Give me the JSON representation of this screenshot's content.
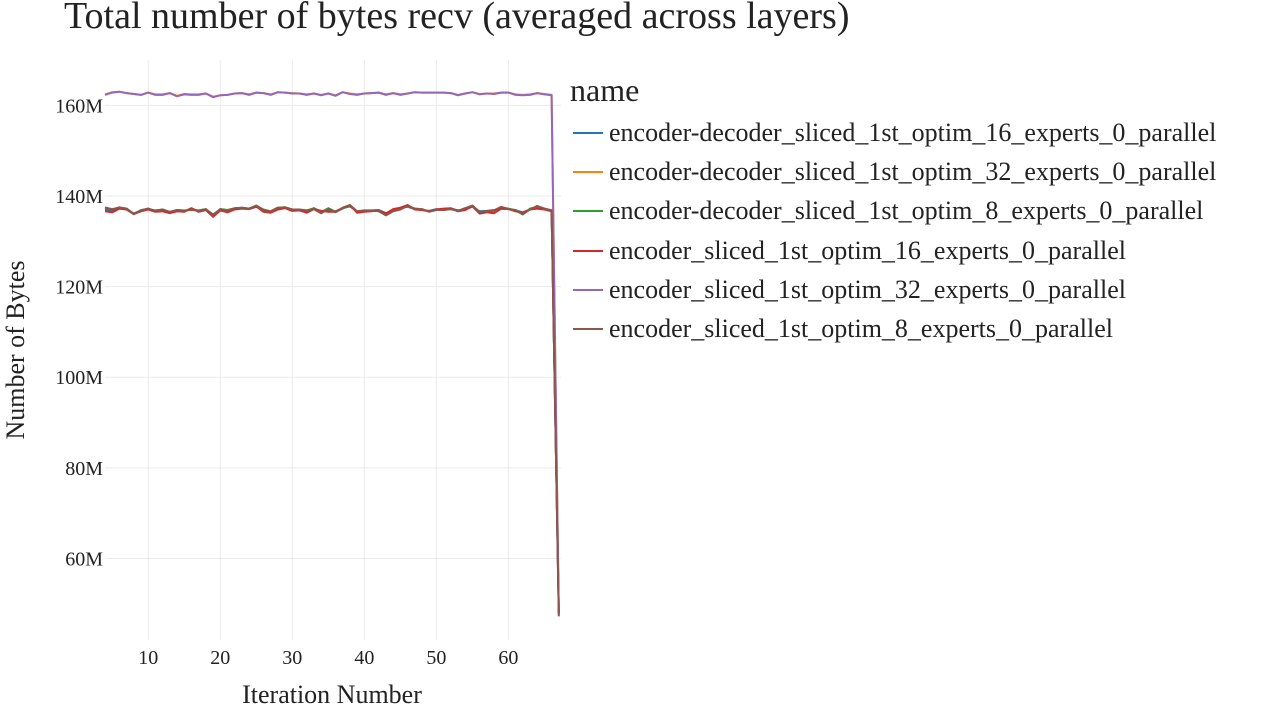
{
  "chart_data": {
    "type": "line",
    "title": "Total number of bytes recv (averaged across layers)",
    "xlabel": "Iteration Number",
    "ylabel": "Number of Bytes",
    "xlim": [
      4,
      67.3
    ],
    "ylim": [
      42000000,
      170000000
    ],
    "xticks": [
      10,
      20,
      30,
      40,
      50,
      60
    ],
    "xtick_labels": [
      "10",
      "20",
      "30",
      "40",
      "50",
      "60"
    ],
    "yticks": [
      60000000,
      80000000,
      100000000,
      120000000,
      140000000,
      160000000
    ],
    "ytick_labels": [
      "60M",
      "80M",
      "100M",
      "120M",
      "140M",
      "160M"
    ],
    "grid": true,
    "legend_title": "name",
    "legend_position": "right",
    "x": [
      4,
      5,
      6,
      7,
      8,
      9,
      10,
      11,
      12,
      13,
      14,
      15,
      16,
      17,
      18,
      19,
      20,
      21,
      22,
      23,
      24,
      25,
      26,
      27,
      28,
      29,
      30,
      31,
      32,
      33,
      34,
      35,
      36,
      37,
      38,
      39,
      40,
      41,
      42,
      43,
      44,
      45,
      46,
      47,
      48,
      49,
      50,
      51,
      52,
      53,
      54,
      55,
      56,
      57,
      58,
      59,
      60,
      61,
      62,
      63,
      64,
      65,
      66,
      67
    ],
    "series": [
      {
        "name": "encoder-decoder_sliced_1st_optim_16_experts_0_parallel",
        "color": "#1f77b4",
        "values": [
          137,
          136.8,
          137.3,
          137.1,
          136.1,
          136.8,
          137.2,
          136.6,
          136.9,
          136.5,
          136.8,
          136.6,
          137.2,
          136.7,
          137,
          135.9,
          137,
          136.8,
          137.2,
          137.3,
          137.1,
          137.6,
          136.8,
          136.5,
          137.2,
          137.4,
          136.9,
          136.9,
          136.6,
          137.3,
          136.5,
          136.9,
          136.6,
          137.3,
          137.7,
          136.6,
          136.8,
          136.8,
          136.9,
          136.2,
          136.8,
          137.3,
          137.6,
          137.1,
          136.9,
          136.7,
          137.1,
          137,
          137.2,
          136.8,
          137.1,
          137.7,
          136.6,
          136.7,
          136.9,
          137.2,
          137.1,
          136.8,
          136.4,
          137,
          137.4,
          137.2,
          136.8,
          48
        ]
      },
      {
        "name": "encoder-decoder_sliced_1st_optim_32_experts_0_parallel",
        "color": "#ff7f0e",
        "values": [
          162.4,
          162.9,
          163,
          162.7,
          162.5,
          162.3,
          162.8,
          162.4,
          162.4,
          162.7,
          162.1,
          162.5,
          162.4,
          162.4,
          162.6,
          161.9,
          162.2,
          162.3,
          162.6,
          162.7,
          162.4,
          162.8,
          162.7,
          162.4,
          162.9,
          162.8,
          162.7,
          162.6,
          162.4,
          162.6,
          162.3,
          162.6,
          162.2,
          162.9,
          162.6,
          162.4,
          162.6,
          162.7,
          162.8,
          162.4,
          162.7,
          162.4,
          162.6,
          162.9,
          162.8,
          162.8,
          162.8,
          162.8,
          162.7,
          162.3,
          162.6,
          162.9,
          162.5,
          162.6,
          162.6,
          162.8,
          162.8,
          162.4,
          162.3,
          162.4,
          162.7,
          162.5,
          162.3,
          48
        ]
      },
      {
        "name": "encoder-decoder_sliced_1st_optim_8_experts_0_parallel",
        "color": "#2ca02c",
        "values": [
          137.4,
          137.1,
          137.4,
          137.2,
          136,
          136.9,
          137.1,
          136.8,
          137,
          136.4,
          136.9,
          136.8,
          136.9,
          136.8,
          137.1,
          135.8,
          137.1,
          136.9,
          137.3,
          137.4,
          137.2,
          137.8,
          137,
          136.6,
          137.4,
          137.5,
          137,
          136.8,
          136.8,
          137.3,
          136.4,
          137.3,
          136.5,
          137.2,
          137.9,
          136.5,
          136.7,
          136.8,
          136.6,
          135.8,
          136.7,
          137.1,
          137.8,
          137.2,
          137,
          136.6,
          137,
          136.9,
          137.1,
          136.7,
          137.3,
          137.8,
          136.4,
          136.6,
          136.7,
          137.5,
          137.2,
          136.8,
          135.9,
          137.2,
          137.6,
          137.1,
          136.7,
          48
        ]
      },
      {
        "name": "encoder_sliced_1st_optim_16_experts_0_parallel",
        "color": "#d62728",
        "values": [
          136.6,
          136.4,
          137.2,
          137,
          136,
          136.6,
          137,
          136.5,
          136.6,
          136.2,
          136.6,
          136.5,
          137.3,
          136.5,
          136.9,
          135.4,
          136.8,
          136.4,
          137,
          137.2,
          137.1,
          137.7,
          136.5,
          136.3,
          137,
          137.3,
          136.7,
          136.8,
          136.3,
          137.1,
          136.7,
          136.5,
          136.5,
          137.4,
          138,
          136.3,
          136.5,
          136.6,
          136.8,
          136.1,
          137.1,
          137.4,
          138,
          137,
          136.9,
          136.6,
          137,
          137.2,
          137.3,
          136.6,
          136.9,
          137.7,
          136.1,
          136.4,
          136.2,
          137.2,
          137.1,
          136.6,
          136.3,
          137,
          137.2,
          137,
          136.6,
          48
        ]
      },
      {
        "name": "encoder_sliced_1st_optim_32_experts_0_parallel",
        "color": "#9467bd",
        "values": [
          162.3,
          162.8,
          163,
          162.7,
          162.5,
          162.3,
          162.8,
          162.3,
          162.3,
          162.7,
          162,
          162.4,
          162.3,
          162.3,
          162.6,
          161.8,
          162.2,
          162.3,
          162.6,
          162.7,
          162.3,
          162.8,
          162.7,
          162.3,
          162.9,
          162.8,
          162.6,
          162.6,
          162.3,
          162.6,
          162.2,
          162.6,
          162.1,
          162.9,
          162.5,
          162.3,
          162.6,
          162.7,
          162.8,
          162.3,
          162.7,
          162.3,
          162.6,
          162.9,
          162.8,
          162.8,
          162.8,
          162.8,
          162.7,
          162.2,
          162.6,
          162.9,
          162.4,
          162.6,
          162.5,
          162.8,
          162.8,
          162.3,
          162.2,
          162.3,
          162.7,
          162.4,
          162.2,
          47.5
        ]
      },
      {
        "name": "encoder_sliced_1st_optim_8_experts_0_parallel",
        "color": "#8c564b",
        "values": [
          137.5,
          137,
          137.5,
          137.2,
          136,
          136.8,
          137.2,
          136.7,
          137,
          136.5,
          136.9,
          136.7,
          137,
          136.7,
          137.1,
          135.8,
          137.1,
          136.8,
          137.3,
          137.4,
          137.2,
          137.9,
          136.9,
          136.6,
          137.4,
          137.5,
          137,
          137,
          136.8,
          137.1,
          136.2,
          137.1,
          136.4,
          137.3,
          138,
          136.6,
          136.7,
          136.7,
          136.7,
          135.7,
          136.6,
          137,
          137.8,
          137.2,
          137.1,
          136.5,
          136.9,
          136.9,
          137.1,
          136.7,
          137.3,
          137.9,
          136.4,
          136.6,
          136.8,
          137.6,
          137.1,
          136.9,
          136,
          137,
          137.8,
          137.2,
          136.8,
          47.2
        ]
      }
    ]
  }
}
